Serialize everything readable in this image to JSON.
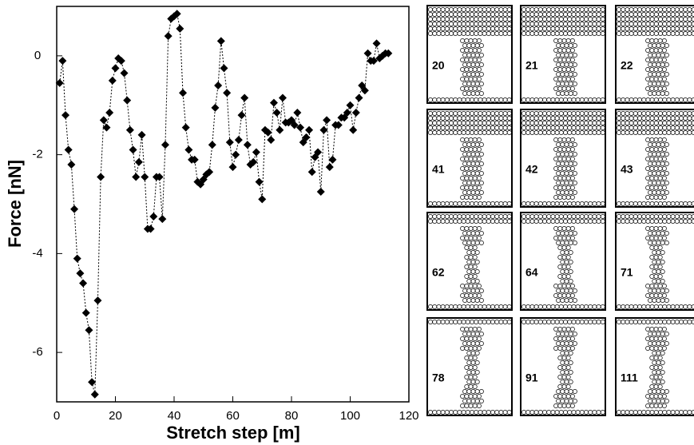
{
  "chart_data": {
    "type": "line",
    "x_label": "Stretch step [m]",
    "y_label": "Force [nN]",
    "xlim": [
      0,
      120
    ],
    "ylim": [
      -7,
      1
    ],
    "xticks": [
      0,
      20,
      40,
      60,
      80,
      100,
      120
    ],
    "yticks": [
      -6,
      -4,
      -2,
      0
    ],
    "series": [
      {
        "color": "#000000",
        "x": [
          1,
          2,
          3,
          4,
          5,
          6,
          7,
          8,
          9,
          10,
          11,
          12,
          13,
          14,
          15,
          16,
          17,
          18,
          19,
          20,
          21,
          22,
          23,
          24,
          25,
          26,
          27,
          28,
          29,
          30,
          31,
          32,
          33,
          34,
          35,
          36,
          37,
          38,
          39,
          40,
          41,
          42,
          43,
          44,
          45,
          46,
          47,
          48,
          49,
          50,
          51,
          52,
          53,
          54,
          55,
          56,
          57,
          58,
          59,
          60,
          61,
          62,
          63,
          64,
          65,
          66,
          67,
          68,
          69,
          70,
          71,
          72,
          73,
          74,
          75,
          76,
          77,
          78,
          79,
          80,
          81,
          82,
          83,
          84,
          85,
          86,
          87,
          88,
          89,
          90,
          91,
          92,
          93,
          94,
          95,
          96,
          97,
          98,
          99,
          100,
          101,
          102,
          103,
          104,
          105,
          106,
          107,
          108,
          109,
          110,
          111,
          112,
          113
        ],
        "values": [
          -0.55,
          -0.1,
          -1.2,
          -1.9,
          -2.2,
          -3.1,
          -4.1,
          -4.4,
          -4.6,
          -5.2,
          -5.55,
          -6.6,
          -6.85,
          -4.95,
          -2.45,
          -1.3,
          -1.45,
          -1.15,
          -0.5,
          -0.25,
          -0.05,
          -0.1,
          -0.35,
          -0.9,
          -1.5,
          -1.9,
          -2.45,
          -2.15,
          -1.6,
          -2.45,
          -3.5,
          -3.5,
          -3.25,
          -2.45,
          -2.45,
          -3.3,
          -1.8,
          0.4,
          0.75,
          0.8,
          0.85,
          0.55,
          -0.75,
          -1.45,
          -1.9,
          -2.1,
          -2.1,
          -2.55,
          -2.6,
          -2.5,
          -2.4,
          -2.35,
          -1.8,
          -1.05,
          -0.6,
          0.3,
          -0.25,
          -0.75,
          -1.75,
          -2.25,
          -2.0,
          -1.7,
          -1.2,
          -0.85,
          -1.8,
          -2.2,
          -2.15,
          -1.95,
          -2.55,
          -2.9,
          -1.5,
          -1.55,
          -1.7,
          -0.95,
          -1.15,
          -1.5,
          -0.85,
          -1.35,
          -1.35,
          -1.3,
          -1.4,
          -1.15,
          -1.45,
          -1.75,
          -1.65,
          -1.5,
          -2.35,
          -2.05,
          -1.95,
          -2.75,
          -1.5,
          -1.3,
          -2.25,
          -2.1,
          -1.4,
          -1.4,
          -1.25,
          -1.25,
          -1.15,
          -1.0,
          -1.5,
          -1.15,
          -0.85,
          -0.6,
          -0.7,
          0.05,
          -0.1,
          -0.1,
          0.25,
          -0.05,
          0.0,
          0.05,
          0.05
        ]
      }
    ]
  },
  "panels": [
    {
      "label": "20"
    },
    {
      "label": "21"
    },
    {
      "label": "22"
    },
    {
      "label": "41"
    },
    {
      "label": "42"
    },
    {
      "label": "43"
    },
    {
      "label": "62"
    },
    {
      "label": "64"
    },
    {
      "label": "71"
    },
    {
      "label": "78"
    },
    {
      "label": "91"
    },
    {
      "label": "111"
    }
  ]
}
